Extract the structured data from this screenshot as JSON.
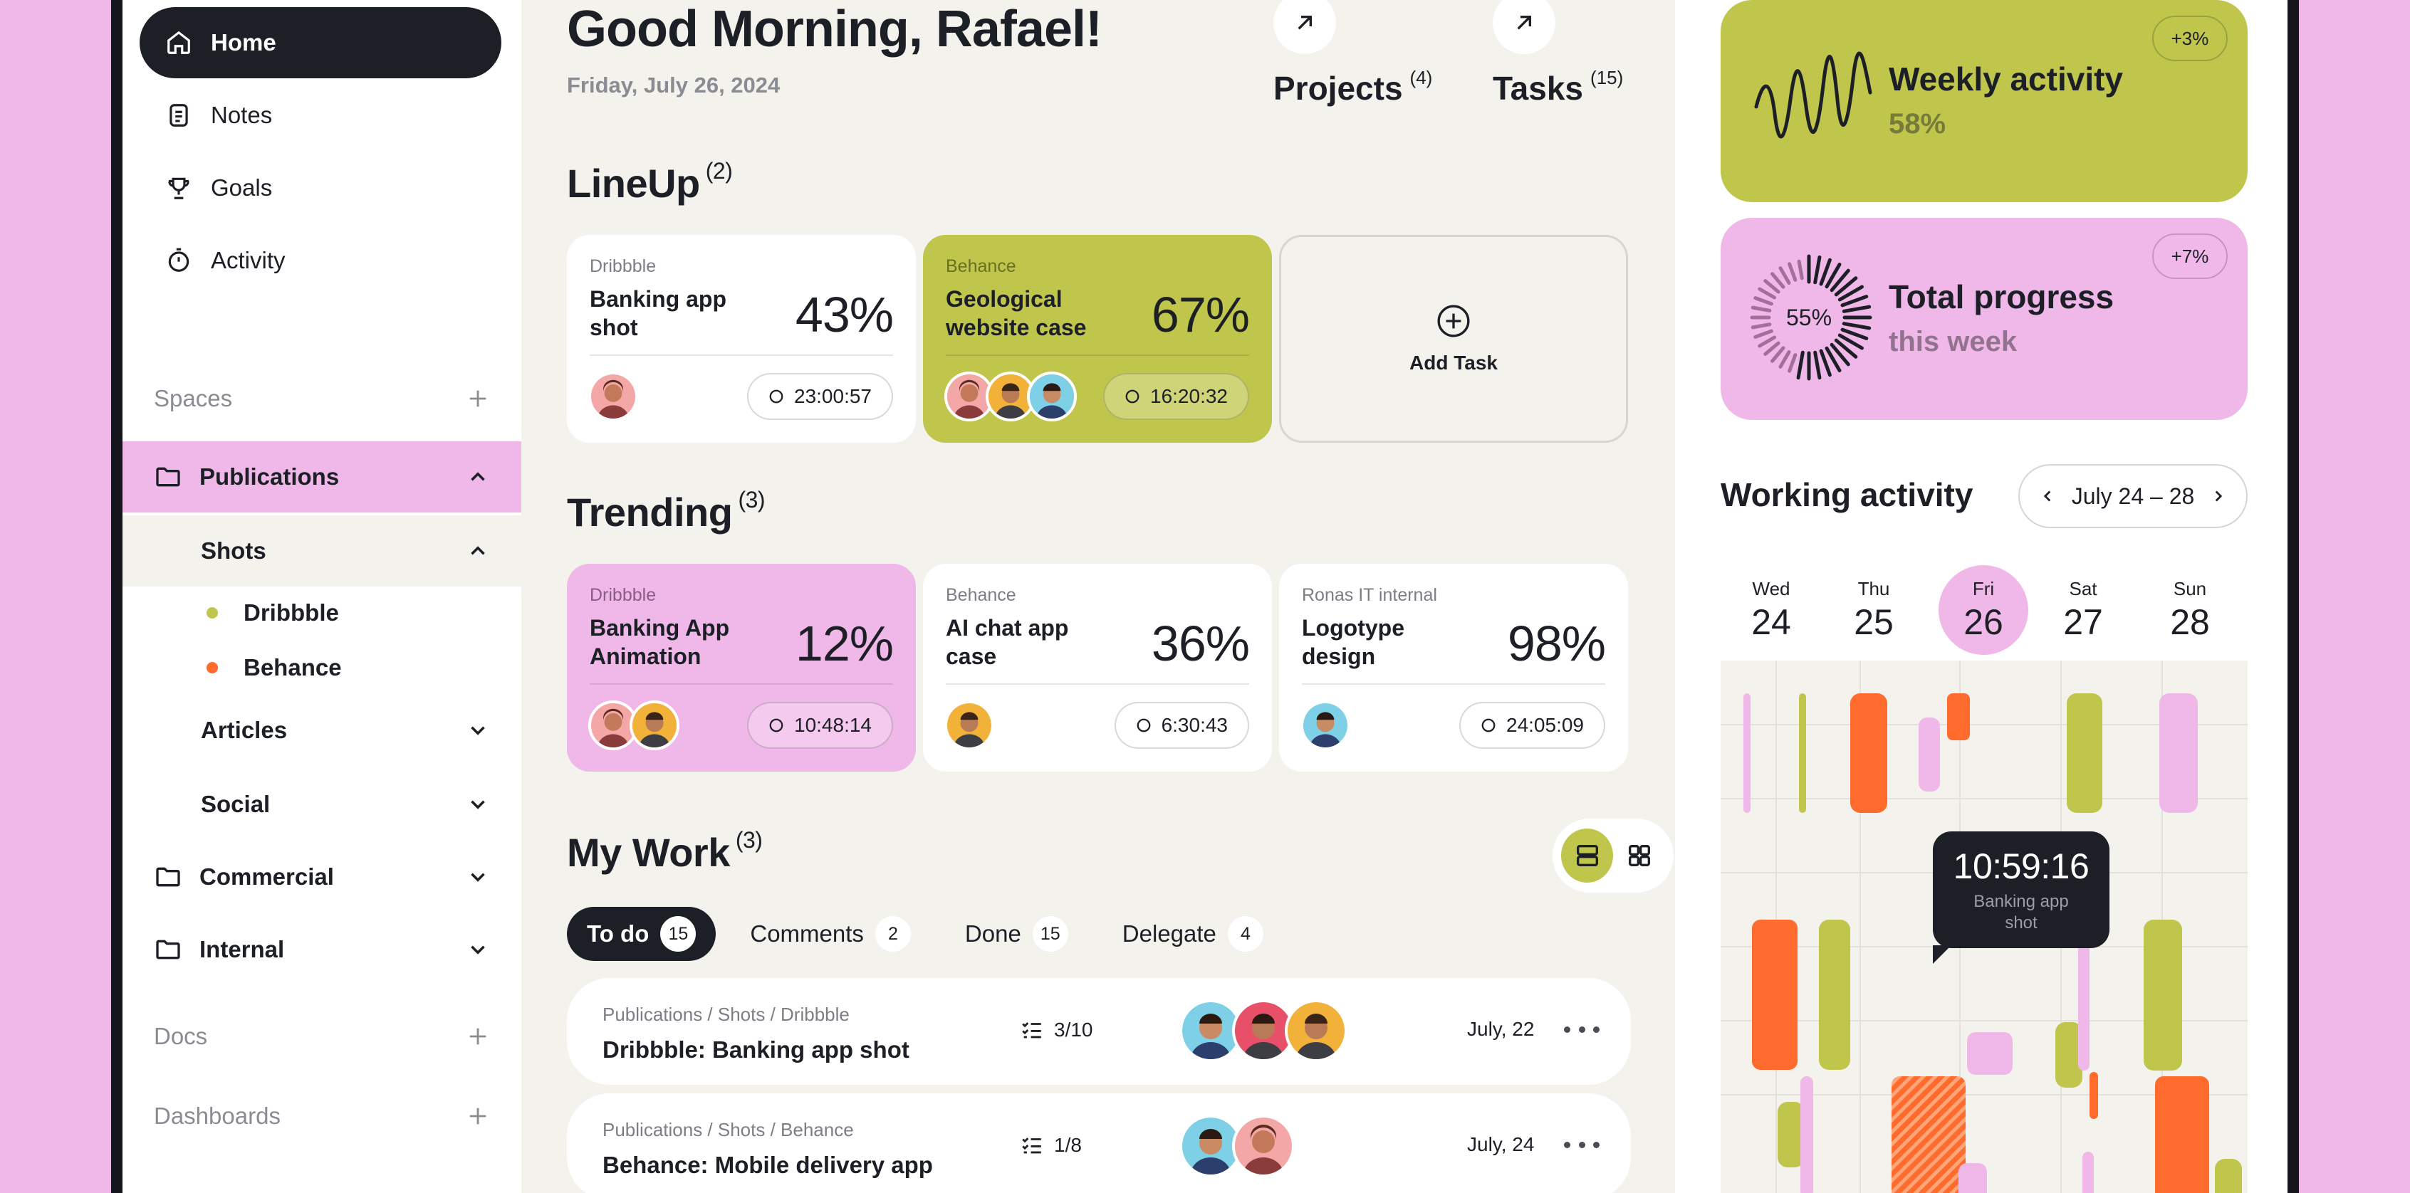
{
  "sidebar": {
    "nav": [
      {
        "label": "Home",
        "icon": "home-icon"
      },
      {
        "label": "Notes",
        "icon": "notes-icon"
      },
      {
        "label": "Goals",
        "icon": "trophy-icon"
      },
      {
        "label": "Activity",
        "icon": "stopwatch-icon"
      }
    ],
    "spaces_label": "Spaces",
    "publications_label": "Publications",
    "shots_label": "Shots",
    "shots_items": [
      {
        "label": "Dribbble",
        "color": "#bfc64b"
      },
      {
        "label": "Behance",
        "color": "#ff6b2c"
      }
    ],
    "articles_label": "Articles",
    "social_label": "Social",
    "commercial_label": "Commercial",
    "internal_label": "Internal",
    "docs_label": "Docs",
    "dashboards_label": "Dashboards"
  },
  "header": {
    "greeting": "Good Morning, Rafael!",
    "date": "Friday, July 26, 2024",
    "projects_label": "Projects",
    "projects_count": "(4)",
    "tasks_label": "Tasks",
    "tasks_count": "(15)"
  },
  "lineup": {
    "title": "LineUp",
    "count": "(2)",
    "cards": [
      {
        "source": "Dribbble",
        "title": "Banking app shot",
        "percent": "43%",
        "timer": "23:00:57"
      },
      {
        "source": "Behance",
        "title": "Geological website case",
        "percent": "67%",
        "timer": "16:20:32"
      }
    ],
    "add_label": "Add Task"
  },
  "trending": {
    "title": "Trending",
    "count": "(3)",
    "cards": [
      {
        "source": "Dribbble",
        "title": "Banking App Animation",
        "percent": "12%",
        "timer": "10:48:14"
      },
      {
        "source": "Behance",
        "title": "AI chat app case",
        "percent": "36%",
        "timer": "6:30:43"
      },
      {
        "source": "Ronas IT internal",
        "title": "Logotype design",
        "percent": "98%",
        "timer": "24:05:09"
      }
    ]
  },
  "my_work": {
    "title": "My Work",
    "count": "(3)",
    "tabs": [
      {
        "label": "To do",
        "count": "15"
      },
      {
        "label": "Comments",
        "count": "2"
      },
      {
        "label": "Done",
        "count": "15"
      },
      {
        "label": "Delegate",
        "count": "4"
      }
    ],
    "rows": [
      {
        "path": "Publications / Shots / Dribbble",
        "name": "Dribbble: Banking app shot",
        "checks": "3/10",
        "date": "July, 22"
      },
      {
        "path": "Publications / Shots / Behance",
        "name": "Behance: Mobile delivery app",
        "checks": "1/8",
        "date": "July, 24"
      }
    ]
  },
  "right": {
    "weekly": {
      "title": "Weekly activity",
      "value": "58%",
      "badge": "+3%"
    },
    "total": {
      "title": "Total progress",
      "sub": "this week",
      "value": "55%",
      "badge": "+7%",
      "progress": 0.55
    },
    "working_title": "Working activity",
    "range": "July 24 – 28",
    "days": [
      {
        "name": "Wed",
        "num": "24"
      },
      {
        "name": "Thu",
        "num": "25"
      },
      {
        "name": "Fri",
        "num": "26"
      },
      {
        "name": "Sat",
        "num": "27"
      },
      {
        "name": "Sun",
        "num": "28"
      }
    ],
    "tooltip_time": "10:59:16",
    "tooltip_label": "Banking app shot"
  },
  "colors": {
    "accent_green": "#bfc64b",
    "accent_pink": "#f0b8e8",
    "accent_orange": "#ff6b2c",
    "dark": "#1d1f26"
  }
}
